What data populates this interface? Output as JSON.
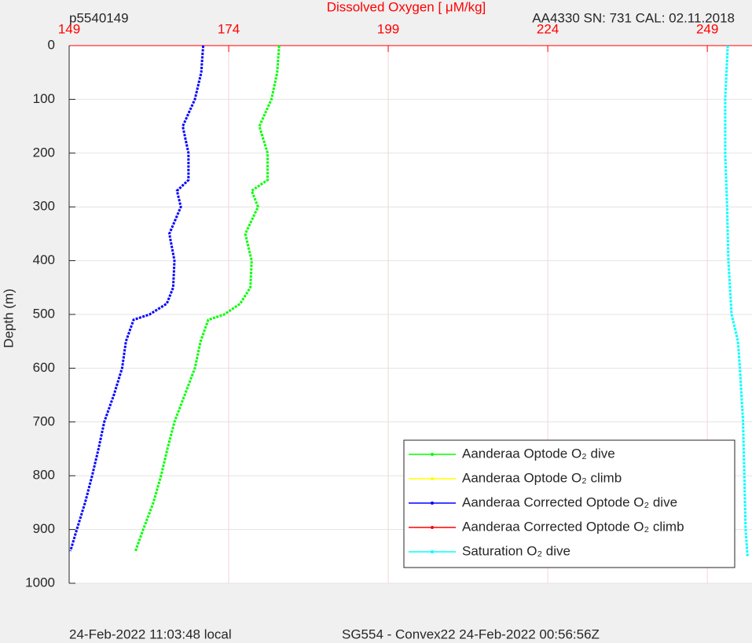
{
  "chart_data": {
    "type": "line",
    "title": "Dissolved Oxygen [ μM/kg]",
    "title_color": "#ff0000",
    "top_left_note": "p5540149",
    "top_right_note": "AA4330   SN: 731   CAL: 02.11.2018",
    "bottom_left_note": "24-Feb-2022 11:03:48 local",
    "bottom_center_note": "SG554 - Convex22 24-Feb-2022 00:56:56Z",
    "y_label": "Depth (m)",
    "xlim": [
      149,
      256
    ],
    "xticks": [
      149,
      174,
      199,
      224,
      249
    ],
    "ylim": [
      0,
      1000
    ],
    "yticks": [
      0,
      100,
      200,
      300,
      400,
      500,
      600,
      700,
      800,
      900,
      1000
    ],
    "y_reversed": true,
    "grid": true,
    "legend": "bottom-right",
    "series": [
      {
        "name": "Aanderaa Optode O₂ dive",
        "color": "#00ff00",
        "x": [
          181.9,
          181.6,
          180.7,
          178.8,
          180.1,
          180.1,
          177.6,
          178.6,
          176.6,
          177.6,
          177.4,
          175.8,
          173.3,
          170.8,
          169.6,
          168.7,
          167.1,
          165.5,
          164.4,
          163.4,
          162.2,
          160.6,
          159.4
        ],
        "values": [
          0,
          50,
          100,
          150,
          200,
          250,
          270,
          300,
          350,
          400,
          450,
          480,
          500,
          510,
          550,
          600,
          650,
          700,
          750,
          800,
          850,
          900,
          940
        ]
      },
      {
        "name": "Aanderaa Optode O₂ climb",
        "color": "#ffff00",
        "x": [],
        "values": []
      },
      {
        "name": "Aanderaa Corrected Optode O₂ dive",
        "color": "#0000ff",
        "x": [
          170.0,
          169.7,
          168.7,
          166.8,
          167.7,
          167.7,
          165.9,
          166.5,
          164.7,
          165.5,
          165.3,
          164.3,
          161.6,
          159.1,
          157.9,
          157.3,
          156.0,
          154.5,
          153.6,
          152.6,
          151.5,
          150.2,
          149.2
        ],
        "values": [
          0,
          50,
          100,
          150,
          200,
          250,
          270,
          300,
          350,
          400,
          450,
          480,
          500,
          510,
          550,
          600,
          650,
          700,
          750,
          800,
          850,
          900,
          940
        ]
      },
      {
        "name": "Aanderaa Corrected Optode O₂ climb",
        "color": "#ff0000",
        "x": [],
        "values": []
      },
      {
        "name": "Saturation O₂ dive",
        "color": "#00ffff",
        "x": [
          252.2,
          251.8,
          251.8,
          252.1,
          252.3,
          252.8,
          253.8,
          254.1,
          254.6,
          254.8,
          255.0,
          255.3
        ],
        "values": [
          0,
          100,
          200,
          300,
          400,
          500,
          550,
          600,
          700,
          800,
          900,
          950
        ]
      }
    ]
  }
}
